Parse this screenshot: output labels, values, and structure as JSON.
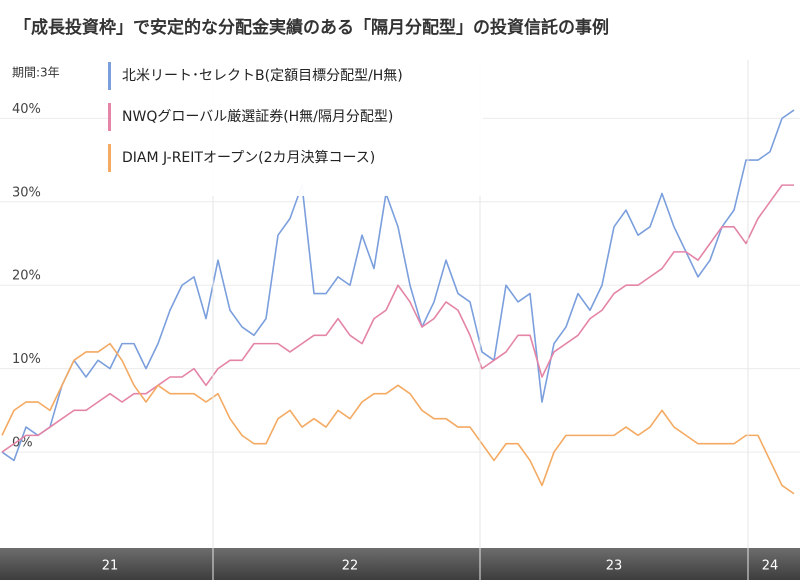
{
  "chart_data": {
    "type": "line",
    "title": "「成長投資枠」で安定的な分配金実績のある「隔月分配型」の投資信託の事例",
    "period_label": "期間:3年",
    "categories": [
      null,
      null,
      null,
      null,
      null,
      null,
      null,
      null,
      null,
      "21",
      null,
      null,
      null,
      null,
      null,
      null,
      null,
      null,
      null,
      null,
      null,
      null,
      null,
      null,
      null,
      null,
      null,
      null,
      null,
      "22",
      null,
      null,
      null,
      null,
      null,
      null,
      null,
      null,
      null,
      null,
      null,
      null,
      null,
      null,
      null,
      null,
      null,
      null,
      null,
      null,
      null,
      "23",
      null,
      null,
      null,
      null,
      null,
      null,
      null,
      null,
      null,
      null,
      null,
      null,
      "24",
      null,
      null
    ],
    "series": [
      {
        "name": "北米リート･セレクトB(定額目標分配型/H無)",
        "color": "#7b9fdd",
        "values": [
          0,
          -1,
          3,
          2,
          3,
          8,
          11,
          9,
          11,
          10,
          13,
          13,
          10,
          13,
          17,
          20,
          21,
          16,
          23,
          17,
          15,
          14,
          16,
          26,
          28,
          32,
          19,
          19,
          21,
          20,
          26,
          22,
          31,
          27,
          20,
          15,
          18,
          23,
          19,
          18,
          12,
          11,
          20,
          18,
          19,
          6,
          13,
          15,
          19,
          17,
          20,
          27,
          29,
          26,
          27,
          31,
          27,
          24,
          21,
          23,
          27,
          29,
          35,
          35,
          36,
          40,
          41
        ]
      },
      {
        "name": "NWQグローバル厳選証券(H無/隔月分配型)",
        "color": "#e484a6",
        "values": [
          0,
          1,
          2,
          2,
          3,
          4,
          5,
          5,
          6,
          7,
          6,
          7,
          7,
          8,
          9,
          9,
          10,
          8,
          10,
          11,
          11,
          13,
          13,
          13,
          12,
          13,
          14,
          14,
          16,
          14,
          13,
          16,
          17,
          20,
          18,
          15,
          16,
          18,
          17,
          14,
          10,
          11,
          12,
          14,
          14,
          9,
          12,
          13,
          14,
          16,
          17,
          19,
          20,
          20,
          21,
          22,
          24,
          24,
          23,
          25,
          27,
          27,
          25,
          28,
          30,
          32,
          32
        ]
      },
      {
        "name": "DIAM J-REITオープン(2カ月決算コース)",
        "color": "#f4aa62",
        "values": [
          2,
          5,
          6,
          6,
          5,
          8,
          11,
          12,
          12,
          13,
          11,
          8,
          6,
          8,
          7,
          7,
          7,
          6,
          7,
          4,
          2,
          1,
          1,
          4,
          5,
          3,
          4,
          3,
          5,
          4,
          6,
          7,
          7,
          8,
          7,
          5,
          4,
          4,
          3,
          3,
          1,
          -1,
          1,
          1,
          -1,
          -4,
          0,
          2,
          2,
          2,
          2,
          2,
          3,
          2,
          3,
          5,
          3,
          2,
          1,
          1,
          1,
          1,
          2,
          2,
          -1,
          -4,
          -5
        ]
      }
    ],
    "ylim": [
      -11.5,
      47
    ],
    "yticks": [
      {
        "value": 0,
        "label": "0%"
      },
      {
        "value": 10,
        "label": "10%"
      },
      {
        "value": 20,
        "label": "20%"
      },
      {
        "value": 30,
        "label": "30%"
      },
      {
        "value": 40,
        "label": "40%"
      }
    ],
    "grid": true
  }
}
